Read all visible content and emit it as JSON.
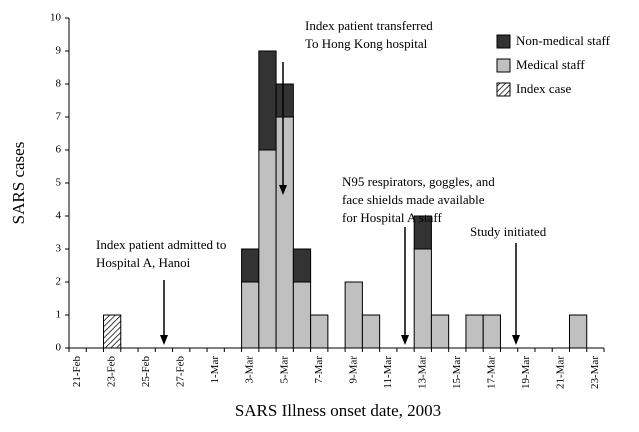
{
  "chart_data": {
    "type": "stacked-bar",
    "x_label": "SARS Illness onset date, 2003",
    "y_label": "SARS cases",
    "categories": [
      "21-Feb",
      null,
      "23-Feb",
      null,
      "25-Feb",
      null,
      "27-Feb",
      null,
      "1-Mar",
      null,
      "3-Mar",
      null,
      "5-Mar",
      null,
      "7-Mar",
      null,
      "9-Mar",
      null,
      "11-Mar",
      null,
      "13-Mar",
      null,
      "15-Mar",
      null,
      "17-Mar",
      null,
      "19-Mar",
      null,
      "21-Mar",
      null,
      "23-Mar"
    ],
    "series": [
      {
        "name": "Non-medical staff",
        "color": "#333333",
        "values": [
          0,
          0,
          0,
          0,
          0,
          0,
          0,
          0,
          0,
          0,
          1,
          3,
          1,
          1,
          0,
          0,
          0,
          0,
          0,
          0,
          1,
          0,
          0,
          0,
          0,
          0,
          0,
          0,
          0,
          0,
          0
        ]
      },
      {
        "name": "Medical staff",
        "color": "#c0c0c0",
        "values": [
          0,
          0,
          0,
          0,
          0,
          0,
          0,
          0,
          0,
          0,
          2,
          6,
          7,
          2,
          1,
          0,
          2,
          1,
          0,
          0,
          3,
          1,
          0,
          1,
          1,
          0,
          0,
          0,
          0,
          1,
          0
        ]
      },
      {
        "name": "Index case",
        "color": "#ffffff",
        "pattern": "diagonal-hatch",
        "values": [
          0,
          0,
          1,
          0,
          0,
          0,
          0,
          0,
          0,
          0,
          0,
          0,
          0,
          0,
          0,
          0,
          0,
          0,
          0,
          0,
          0,
          0,
          0,
          0,
          0,
          0,
          0,
          0,
          0,
          0,
          0
        ]
      }
    ],
    "ylim": [
      0,
      10
    ],
    "yticks": [
      0,
      1,
      2,
      3,
      4,
      5,
      6,
      7,
      8,
      9,
      10
    ],
    "legend": "top-right",
    "annotations": [
      {
        "lines": [
          "Index patient admitted to",
          "Hospital A, Hanoi"
        ]
      },
      {
        "lines": [
          "Index patient transferred",
          "To Hong Kong hospital"
        ]
      },
      {
        "lines": [
          "N95 respirators, goggles, and",
          "face shields made available",
          "for Hospital A staff"
        ]
      },
      {
        "lines": [
          "Study initiated"
        ]
      }
    ]
  }
}
